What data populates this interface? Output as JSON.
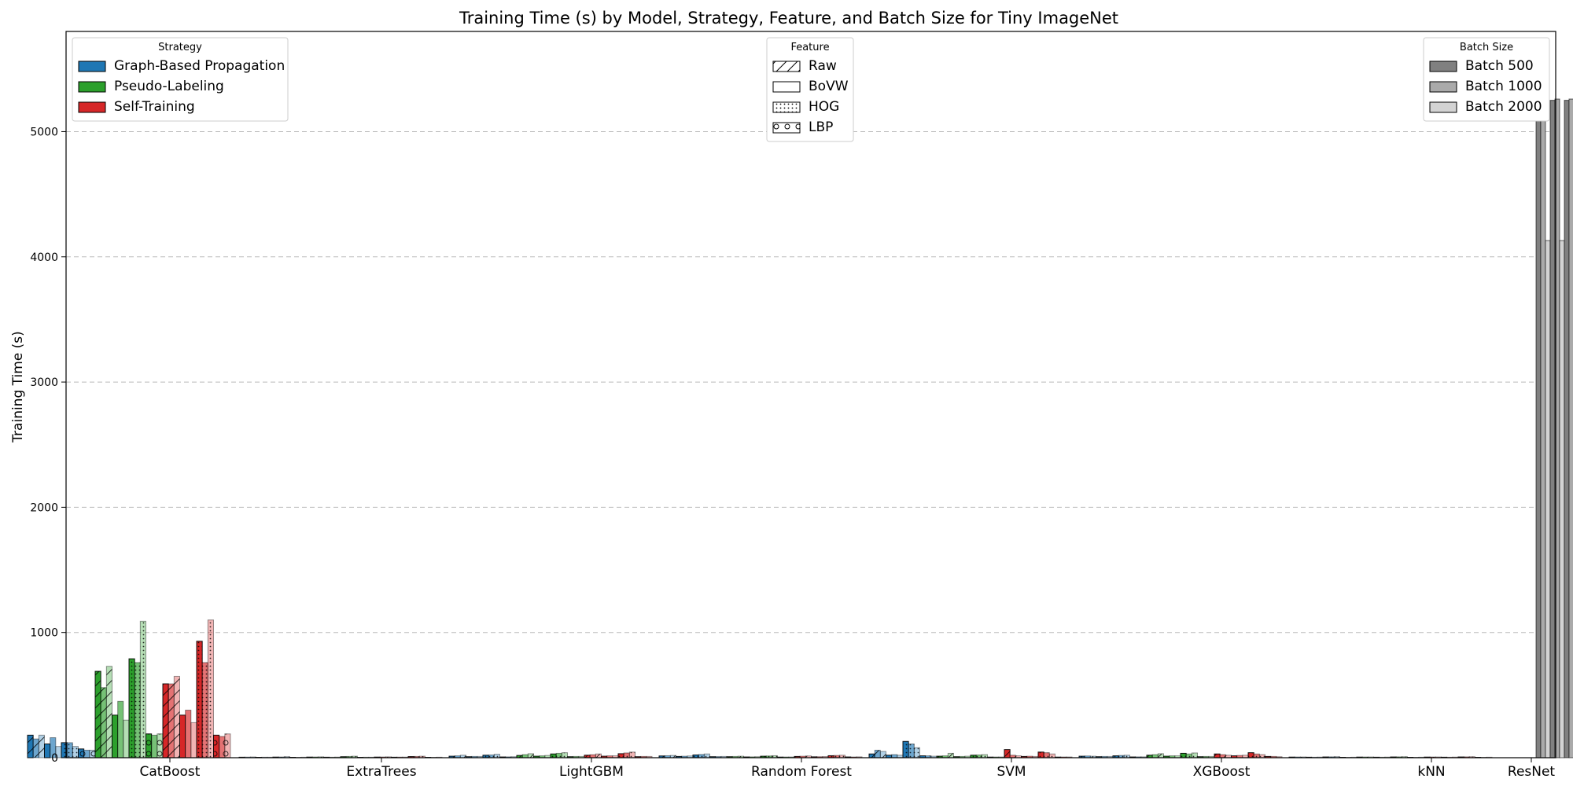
{
  "chart_data": {
    "type": "bar",
    "title": "Training Time (s) by Model, Strategy, Feature, and Batch Size for Tiny ImageNet",
    "xlabel": "",
    "ylabel": "Training Time (s)",
    "ylim": [
      0,
      5800
    ],
    "yticks": [
      "0",
      "1000",
      "2000",
      "3000",
      "4000",
      "5000"
    ],
    "grid": "y-dashed",
    "categories": [
      "CatBoost",
      "ExtraTrees",
      "LightGBM",
      "Random Forest",
      "SVM",
      "XGBoost",
      "kNN",
      "ResNet"
    ],
    "strategies": [
      "Graph-Based Propagation",
      "Pseudo-Labeling",
      "Self-Training"
    ],
    "features": [
      "Raw",
      "BoVW",
      "HOG",
      "LBP"
    ],
    "batch_sizes": [
      "Batch 500",
      "Batch 1000",
      "Batch 2000"
    ],
    "strategy_colors": [
      "#1f77b4",
      "#2ca02c",
      "#d62728"
    ],
    "batch_alphas": [
      1.0,
      0.65,
      0.35
    ],
    "batch_legend_colors": [
      "#808080",
      "#aaaaaa",
      "#d3d3d3"
    ],
    "feature_hatches": [
      "diagonal",
      "none",
      "dots",
      "circles"
    ],
    "legends": {
      "strategy": {
        "title": "Strategy",
        "placement": "upper-left"
      },
      "feature": {
        "title": "Feature",
        "placement": "upper-center"
      },
      "batch": {
        "title": "Batch Size",
        "placement": "upper-right"
      }
    },
    "values_order": "values[model][strategy][feature][batch]",
    "values": [
      [
        [
          [
            180,
            150,
            180
          ],
          [
            110,
            160,
            90
          ],
          [
            120,
            120,
            90
          ],
          [
            70,
            60,
            60
          ]
        ],
        [
          [
            690,
            560,
            730
          ],
          [
            340,
            450,
            300
          ],
          [
            790,
            760,
            1090
          ],
          [
            190,
            180,
            190
          ]
        ],
        [
          [
            590,
            590,
            650
          ],
          [
            340,
            380,
            280
          ],
          [
            930,
            760,
            1100
          ],
          [
            180,
            170,
            190
          ]
        ]
      ],
      [
        [
          [
            4,
            5,
            6
          ],
          [
            3,
            4,
            4
          ],
          [
            5,
            6,
            8
          ],
          [
            3,
            3,
            4
          ]
        ],
        [
          [
            5,
            6,
            7
          ],
          [
            4,
            4,
            5
          ],
          [
            8,
            10,
            12
          ],
          [
            3,
            4,
            4
          ]
        ],
        [
          [
            5,
            6,
            7
          ],
          [
            4,
            5,
            5
          ],
          [
            9,
            10,
            12
          ],
          [
            3,
            3,
            4
          ]
        ]
      ],
      [
        [
          [
            12,
            15,
            20
          ],
          [
            8,
            10,
            10
          ],
          [
            20,
            22,
            28
          ],
          [
            6,
            7,
            8
          ]
        ],
        [
          [
            18,
            25,
            32
          ],
          [
            12,
            15,
            18
          ],
          [
            30,
            35,
            40
          ],
          [
            8,
            10,
            10
          ]
        ],
        [
          [
            20,
            24,
            30
          ],
          [
            12,
            15,
            15
          ],
          [
            32,
            38,
            45
          ],
          [
            8,
            10,
            10
          ]
        ]
      ],
      [
        [
          [
            14,
            16,
            18
          ],
          [
            10,
            12,
            14
          ],
          [
            22,
            26,
            30
          ],
          [
            8,
            9,
            10
          ]
        ],
        [
          [
            8,
            10,
            12
          ],
          [
            6,
            7,
            8
          ],
          [
            12,
            14,
            16
          ],
          [
            5,
            6,
            6
          ]
        ],
        [
          [
            10,
            12,
            14
          ],
          [
            7,
            8,
            9
          ],
          [
            16,
            18,
            20
          ],
          [
            6,
            6,
            7
          ]
        ]
      ],
      [
        [
          [
            30,
            60,
            50
          ],
          [
            20,
            25,
            20
          ],
          [
            130,
            110,
            80
          ],
          [
            15,
            15,
            12
          ]
        ],
        [
          [
            12,
            15,
            35
          ],
          [
            8,
            10,
            12
          ],
          [
            20,
            22,
            25
          ],
          [
            5,
            6,
            6
          ]
        ],
        [
          [
            65,
            20,
            15
          ],
          [
            10,
            12,
            10
          ],
          [
            45,
            40,
            30
          ],
          [
            5,
            6,
            6
          ]
        ]
      ],
      [
        [
          [
            12,
            14,
            12
          ],
          [
            8,
            10,
            10
          ],
          [
            15,
            18,
            20
          ],
          [
            6,
            7,
            7
          ]
        ],
        [
          [
            20,
            25,
            32
          ],
          [
            12,
            15,
            15
          ],
          [
            35,
            30,
            38
          ],
          [
            8,
            10,
            10
          ]
        ],
        [
          [
            30,
            25,
            20
          ],
          [
            15,
            18,
            20
          ],
          [
            40,
            30,
            25
          ],
          [
            10,
            10,
            8
          ]
        ]
      ],
      [
        [
          [
            5,
            6,
            6
          ],
          [
            4,
            4,
            5
          ],
          [
            6,
            7,
            8
          ],
          [
            3,
            3,
            4
          ]
        ],
        [
          [
            5,
            6,
            6
          ],
          [
            4,
            4,
            5
          ],
          [
            6,
            7,
            8
          ],
          [
            3,
            3,
            4
          ]
        ],
        [
          [
            5,
            6,
            6
          ],
          [
            4,
            4,
            5
          ],
          [
            6,
            7,
            8
          ],
          [
            3,
            3,
            4
          ]
        ]
      ],
      [
        [
          [
            5250,
            5260,
            4130
          ]
        ],
        [
          [
            5250,
            5260,
            4130
          ]
        ],
        [
          [
            5250,
            5260,
            4130
          ]
        ]
      ]
    ]
  }
}
